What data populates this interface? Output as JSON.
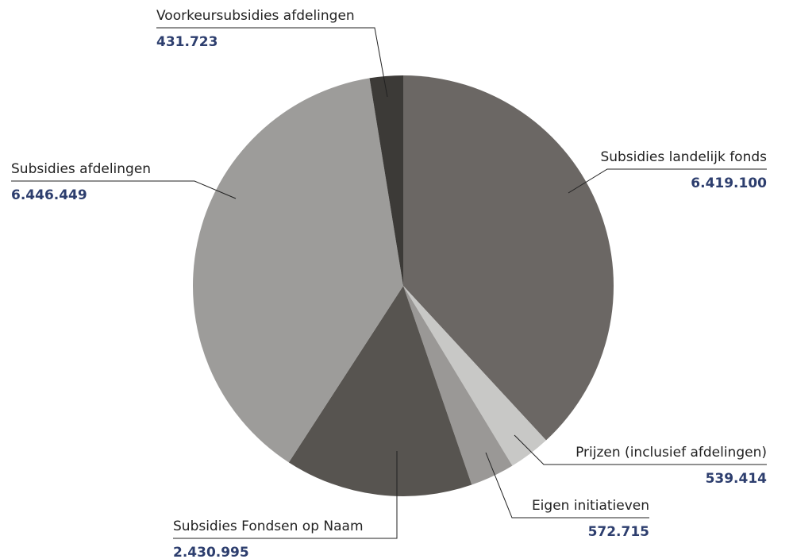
{
  "chart_data": {
    "type": "pie",
    "categories": [
      "Subsidies landelijk fonds",
      "Prijzen (inclusief afdelingen)",
      "Eigen initiatieven",
      "Subsidies Fondsen op Naam",
      "Subsidies afdelingen",
      "Voorkeursubsidies afdelingen"
    ],
    "values": [
      6419100,
      539414,
      572715,
      2430995,
      6446449,
      431723
    ],
    "value_labels": [
      "6.419.100",
      "539.414",
      "572.715",
      "2.430.995",
      "6.446.449",
      "431.723"
    ],
    "colors": [
      "#6b6764",
      "#c8c8c6",
      "#9a9896",
      "#575450",
      "#9d9c9a",
      "#3c3a37"
    ]
  }
}
